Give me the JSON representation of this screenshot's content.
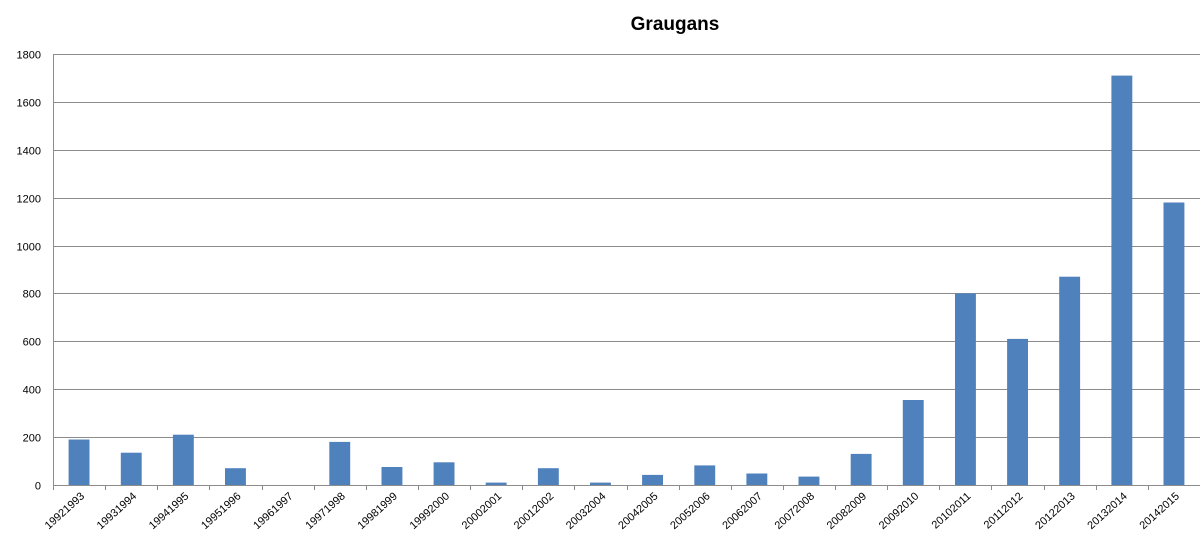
{
  "chart_data": {
    "type": "bar",
    "title": "Graugans",
    "xlabel": "",
    "ylabel": "",
    "categories": [
      "19921993",
      "19931994",
      "19941995",
      "19951996",
      "19961997",
      "19971998",
      "19981999",
      "19992000",
      "20002001",
      "20012002",
      "20032004",
      "20042005",
      "20052006",
      "20062007",
      "20072008",
      "20082009",
      "20092010",
      "20102011",
      "20112012",
      "20122013",
      "20132014",
      "20142015"
    ],
    "values": [
      190,
      135,
      210,
      70,
      0,
      180,
      75,
      95,
      10,
      70,
      10,
      42,
      82,
      48,
      35,
      130,
      355,
      800,
      610,
      870,
      1710,
      1180
    ],
    "ylim": [
      0,
      1800
    ],
    "yticks": [
      0,
      200,
      400,
      600,
      800,
      1000,
      1200,
      1400,
      1600,
      1800
    ],
    "grid": true,
    "legend": "none",
    "colors": {
      "bar": "#4F81BD",
      "grid": "#8c8c8c",
      "axis": "#8c8c8c"
    }
  }
}
